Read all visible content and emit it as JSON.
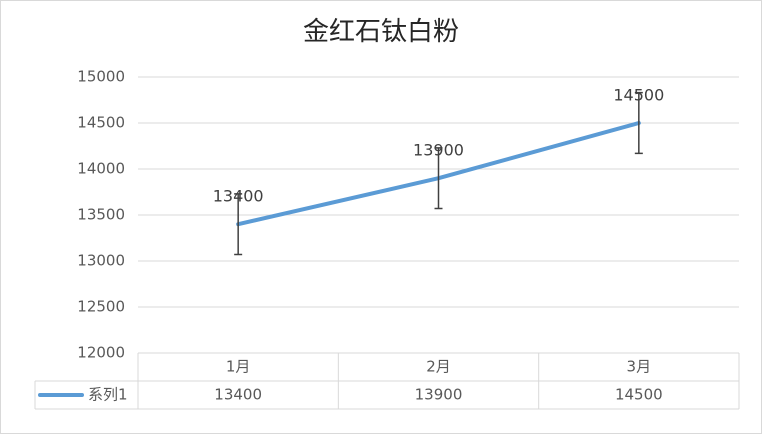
{
  "chart_data": {
    "type": "line",
    "title": "金红石钛白粉",
    "categories": [
      "1月",
      "2月",
      "3月"
    ],
    "series": [
      {
        "name": "系列1",
        "color": "#5b9bd5",
        "values": [
          13400,
          13900,
          14500
        ],
        "errors": [
          330,
          330,
          330
        ]
      }
    ],
    "ylim": [
      12000,
      15000
    ],
    "yticks": [
      12000,
      12500,
      13000,
      13500,
      14000,
      14500,
      15000
    ],
    "grid": true,
    "data_labels": true,
    "data_table": true
  }
}
